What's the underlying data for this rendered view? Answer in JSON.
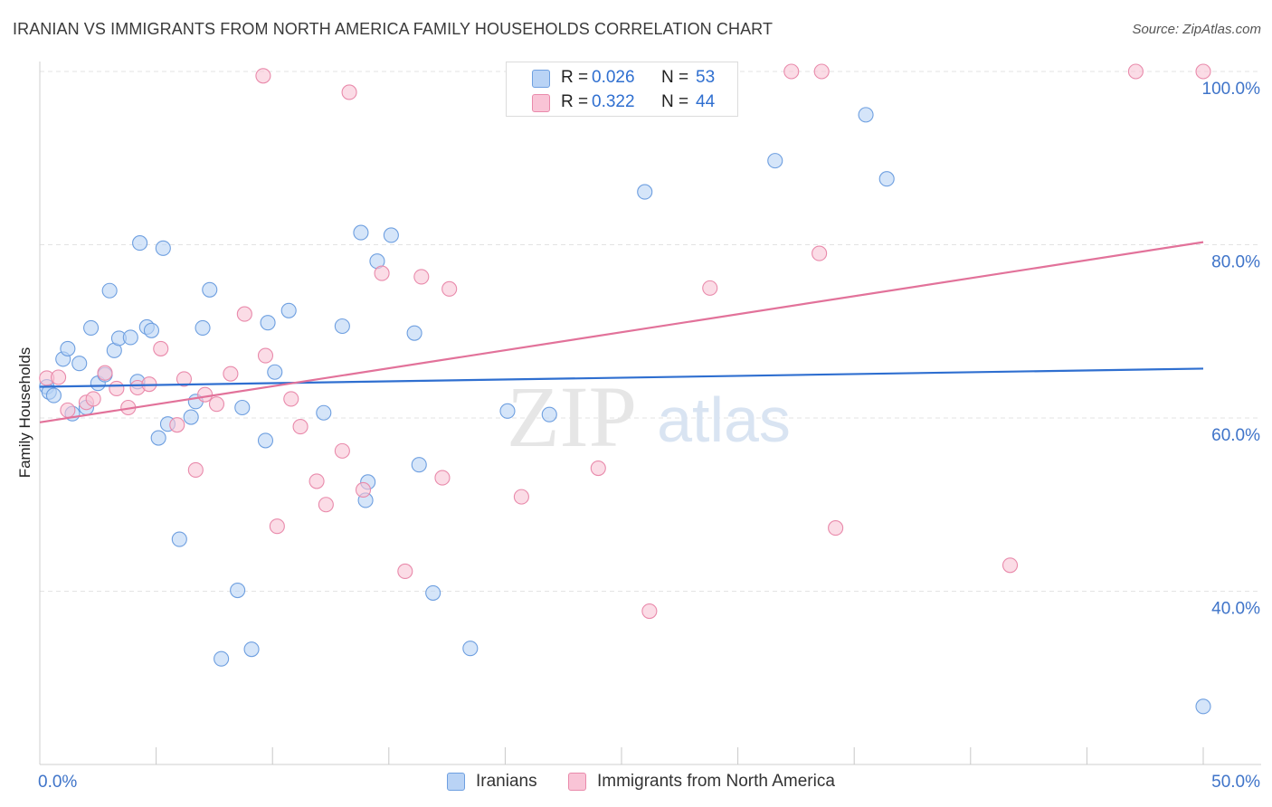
{
  "title": "IRANIAN VS IMMIGRANTS FROM NORTH AMERICA FAMILY HOUSEHOLDS CORRELATION CHART",
  "source": "Source: ZipAtlas.com",
  "legend": {
    "r_label": "R =",
    "n_label": "N =",
    "rows": [
      {
        "r": "0.026",
        "n": "53"
      },
      {
        "r": "0.322",
        "n": "44"
      }
    ]
  },
  "watermark": {
    "zip": "ZIP",
    "atlas": "atlas"
  },
  "colors": {
    "series1_fill": "#b9d3f5",
    "series1_stroke": "#6e9fe0",
    "series1_line": "#2f6fd0",
    "series2_fill": "#f9c4d6",
    "series2_stroke": "#e98aab",
    "series2_line": "#e2729a",
    "axis_text": "#3f74c9",
    "grid": "#e3e3e3"
  },
  "chart_data": {
    "type": "scatter",
    "title": "IRANIAN VS IMMIGRANTS FROM NORTH AMERICA FAMILY HOUSEHOLDS CORRELATION CHART",
    "xlabel": "",
    "ylabel": "Family Households",
    "xlim": [
      0,
      50
    ],
    "ylim": [
      20,
      100
    ],
    "x_tick_labels": [
      {
        "value": 0,
        "label": "0.0%"
      },
      {
        "value": 50,
        "label": "50.0%"
      }
    ],
    "x_minor_ticks": [
      5,
      10,
      15,
      20,
      25,
      30,
      35,
      40,
      45,
      50
    ],
    "y_ticks": [
      {
        "value": 40,
        "label": "40.0%"
      },
      {
        "value": 60,
        "label": "60.0%"
      },
      {
        "value": 80,
        "label": "80.0%"
      },
      {
        "value": 100,
        "label": "100.0%"
      }
    ],
    "grid": "horizontal dashed",
    "legend_position": "top-center",
    "series": [
      {
        "name": "Iranians",
        "r": 0.026,
        "n": 53,
        "trend": {
          "x": [
            0,
            50
          ],
          "y": [
            63.6,
            65.7
          ]
        },
        "points": [
          [
            0.3,
            63.6
          ],
          [
            0.4,
            63.0
          ],
          [
            0.6,
            62.6
          ],
          [
            1.0,
            66.8
          ],
          [
            1.2,
            68.0
          ],
          [
            1.4,
            60.5
          ],
          [
            1.7,
            66.3
          ],
          [
            2.0,
            61.2
          ],
          [
            2.2,
            70.4
          ],
          [
            2.5,
            64.0
          ],
          [
            2.8,
            65.0
          ],
          [
            3.0,
            74.7
          ],
          [
            3.2,
            67.8
          ],
          [
            3.4,
            69.2
          ],
          [
            3.9,
            69.3
          ],
          [
            4.2,
            64.2
          ],
          [
            4.3,
            80.2
          ],
          [
            4.6,
            70.5
          ],
          [
            4.8,
            70.1
          ],
          [
            5.1,
            57.7
          ],
          [
            5.3,
            79.6
          ],
          [
            5.5,
            59.3
          ],
          [
            6.0,
            46.0
          ],
          [
            6.5,
            60.1
          ],
          [
            6.7,
            61.9
          ],
          [
            7.0,
            70.4
          ],
          [
            7.3,
            74.8
          ],
          [
            7.8,
            32.2
          ],
          [
            8.5,
            40.1
          ],
          [
            8.7,
            61.2
          ],
          [
            9.1,
            33.3
          ],
          [
            9.7,
            57.4
          ],
          [
            9.8,
            71.0
          ],
          [
            10.1,
            65.3
          ],
          [
            10.7,
            72.4
          ],
          [
            12.2,
            60.6
          ],
          [
            13.0,
            70.6
          ],
          [
            13.8,
            81.4
          ],
          [
            14.0,
            50.5
          ],
          [
            14.1,
            52.6
          ],
          [
            14.5,
            78.1
          ],
          [
            15.1,
            81.1
          ],
          [
            16.1,
            69.8
          ],
          [
            16.3,
            54.6
          ],
          [
            16.9,
            39.8
          ],
          [
            18.5,
            33.4
          ],
          [
            20.1,
            60.8
          ],
          [
            21.9,
            60.4
          ],
          [
            26.0,
            86.1
          ],
          [
            31.6,
            89.7
          ],
          [
            35.5,
            95.0
          ],
          [
            36.4,
            87.6
          ],
          [
            50.0,
            26.7
          ]
        ]
      },
      {
        "name": "Immigrants from North America",
        "r": 0.322,
        "n": 44,
        "trend": {
          "x": [
            0,
            50
          ],
          "y": [
            59.5,
            80.3
          ]
        },
        "points": [
          [
            0.3,
            64.6
          ],
          [
            0.8,
            64.7
          ],
          [
            1.2,
            60.9
          ],
          [
            2.0,
            61.8
          ],
          [
            2.3,
            62.2
          ],
          [
            2.8,
            65.2
          ],
          [
            3.3,
            63.4
          ],
          [
            3.8,
            61.2
          ],
          [
            4.2,
            63.5
          ],
          [
            4.7,
            63.9
          ],
          [
            5.2,
            68.0
          ],
          [
            5.9,
            59.2
          ],
          [
            6.2,
            64.5
          ],
          [
            6.7,
            54.0
          ],
          [
            7.1,
            62.7
          ],
          [
            7.6,
            61.6
          ],
          [
            8.2,
            65.1
          ],
          [
            8.8,
            72.0
          ],
          [
            9.6,
            99.5
          ],
          [
            9.7,
            67.2
          ],
          [
            10.2,
            47.5
          ],
          [
            10.8,
            62.2
          ],
          [
            11.2,
            59.0
          ],
          [
            11.9,
            52.7
          ],
          [
            12.3,
            50.0
          ],
          [
            13.0,
            56.2
          ],
          [
            13.3,
            97.6
          ],
          [
            13.9,
            51.7
          ],
          [
            14.7,
            76.7
          ],
          [
            15.7,
            42.3
          ],
          [
            16.4,
            76.3
          ],
          [
            17.3,
            53.1
          ],
          [
            17.6,
            74.9
          ],
          [
            20.7,
            50.9
          ],
          [
            24.0,
            54.2
          ],
          [
            26.2,
            37.7
          ],
          [
            28.8,
            75.0
          ],
          [
            32.3,
            100.0
          ],
          [
            33.5,
            79.0
          ],
          [
            33.6,
            100.0
          ],
          [
            34.2,
            47.3
          ],
          [
            41.7,
            43.0
          ],
          [
            47.1,
            100.0
          ],
          [
            50.0,
            100.0
          ]
        ]
      }
    ]
  }
}
